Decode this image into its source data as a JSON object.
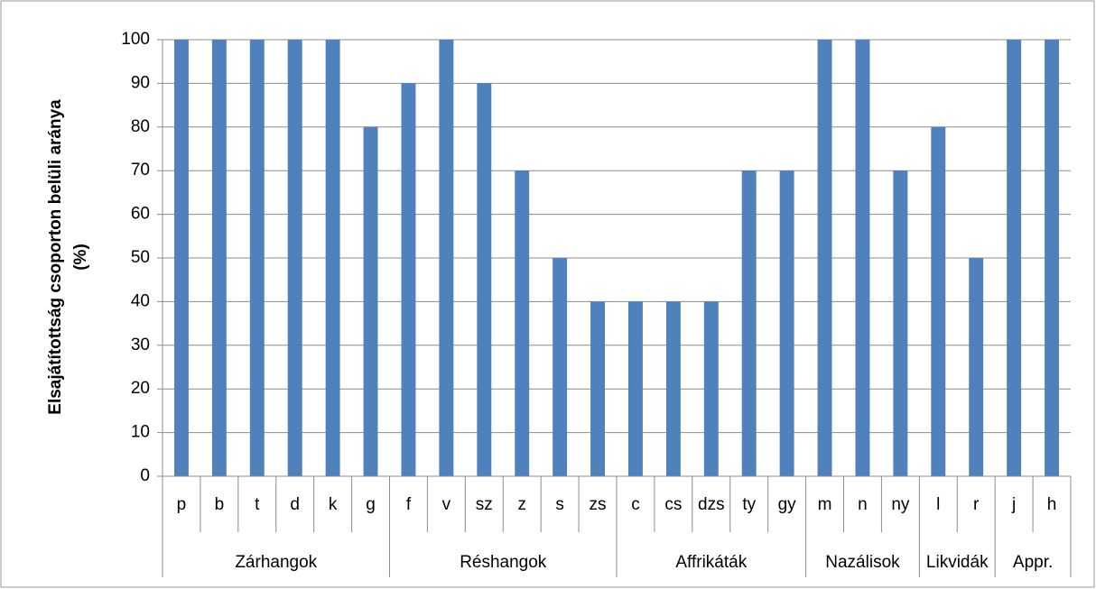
{
  "chart_data": {
    "type": "bar",
    "y_label": [
      "Elsajátítottság  csoporton belüli aránya",
      "(%)"
    ],
    "color": "#4f81bd",
    "ylim": [
      0,
      100
    ],
    "yticks": [
      0,
      10,
      20,
      30,
      40,
      50,
      60,
      70,
      80,
      90,
      100
    ],
    "grid": true,
    "groups": [
      {
        "name": "Zárhangok",
        "categories": [
          "p",
          "b",
          "t",
          "d",
          "k",
          "g"
        ],
        "values": [
          100,
          100,
          100,
          100,
          100,
          80
        ]
      },
      {
        "name": "Réshangok",
        "categories": [
          "f",
          "v",
          "sz",
          "z",
          "s",
          "zs"
        ],
        "values": [
          90,
          100,
          90,
          70,
          50,
          40
        ]
      },
      {
        "name": "Affrikáták",
        "categories": [
          "c",
          "cs",
          "dzs",
          "ty",
          "gy"
        ],
        "values": [
          40,
          40,
          40,
          70,
          70
        ]
      },
      {
        "name": "Nazálisok",
        "categories": [
          "m",
          "n",
          "ny"
        ],
        "values": [
          100,
          100,
          70
        ]
      },
      {
        "name": "Likvidák",
        "categories": [
          "l",
          "r"
        ],
        "values": [
          80,
          50
        ]
      },
      {
        "name": "Appr.",
        "categories": [
          "j",
          "h"
        ],
        "values": [
          100,
          100
        ]
      }
    ]
  }
}
